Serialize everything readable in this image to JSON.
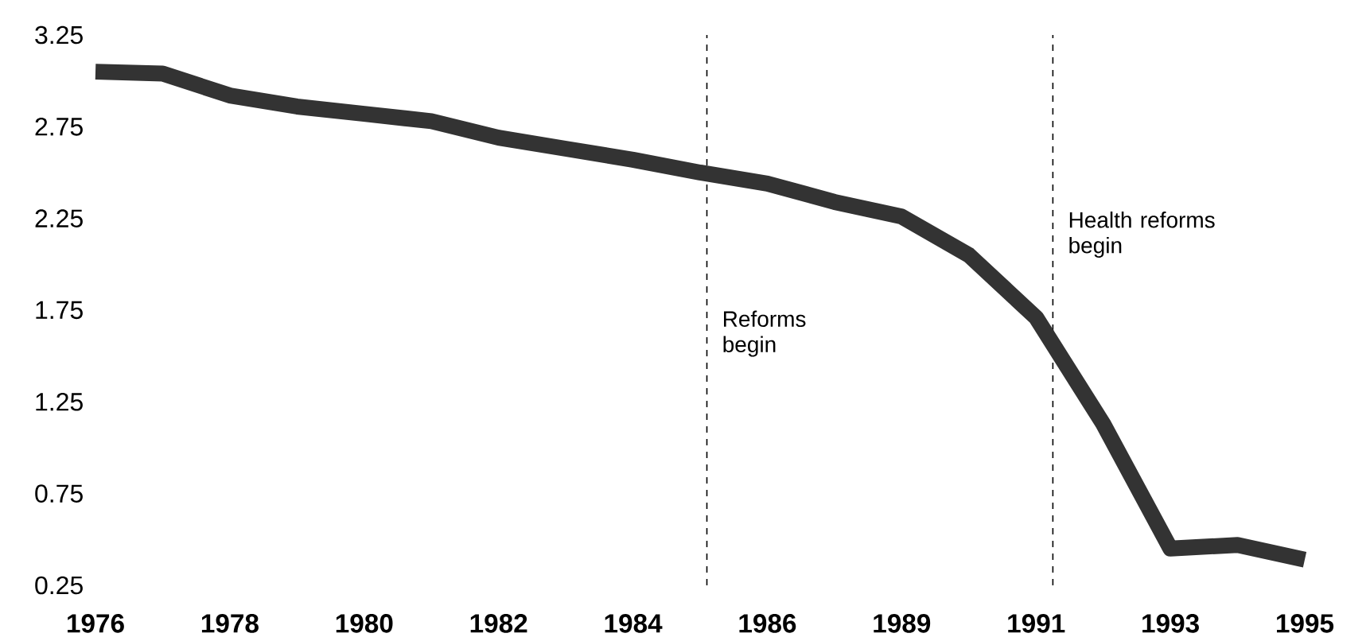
{
  "chart_data": {
    "type": "line",
    "categories": [
      "1976",
      null,
      "1978",
      null,
      "1980",
      null,
      "1982",
      null,
      "1984",
      null,
      "1986",
      null,
      "1989",
      null,
      "1991",
      null,
      "1993",
      null,
      "1995"
    ],
    "values": [
      3.05,
      3.04,
      2.92,
      2.86,
      2.82,
      2.78,
      2.69,
      2.63,
      2.57,
      2.5,
      2.44,
      2.34,
      2.26,
      2.05,
      1.71,
      1.13,
      0.45,
      0.47,
      0.39
    ],
    "color": "#333333",
    "line_style": "solid",
    "ylim": [
      0.25,
      3.25
    ],
    "yticks": [
      0.25,
      0.75,
      1.25,
      1.75,
      2.25,
      2.75,
      3.25
    ],
    "annotations": [
      "Reforms begin",
      "Health reforms begin"
    ]
  }
}
